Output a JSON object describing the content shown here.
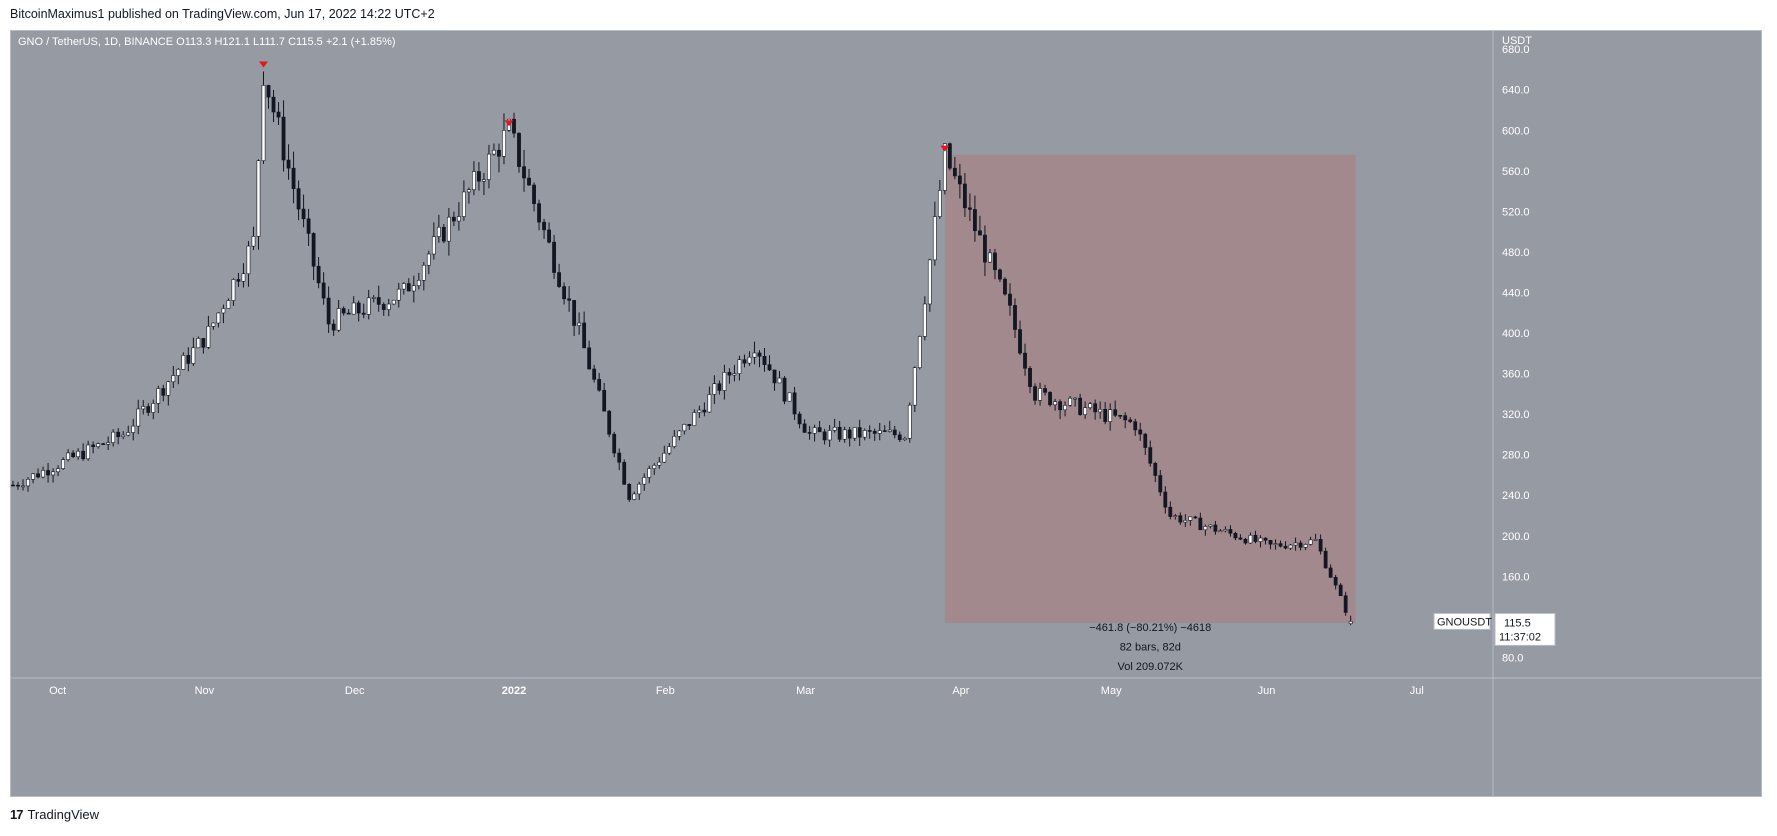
{
  "header": {
    "publisher_line": "BitcoinMaximus1 published on TradingView.com, Jun 17, 2022 14:22 UTC+2"
  },
  "legend": {
    "symbol": "GNO / TetherUS, 1D, BINANCE",
    "o_label": "O",
    "o_value": "113.3",
    "h_label": "H",
    "h_value": "121.1",
    "l_label": "L",
    "l_value": "111.7",
    "c_label": "C",
    "c_value": "115.5",
    "change": "+2.1 (+1.85%)"
  },
  "price_scale": {
    "currency": "USDT",
    "ticks": [
      "680.0",
      "640.0",
      "600.0",
      "560.0",
      "520.0",
      "480.0",
      "440.0",
      "400.0",
      "360.0",
      "320.0",
      "280.0",
      "240.0",
      "200.0",
      "160.0",
      "80.0"
    ]
  },
  "time_scale": {
    "labels": [
      "Oct",
      "Nov",
      "Dec",
      "2022",
      "Feb",
      "Mar",
      "Apr",
      "May",
      "Jun",
      "Jul"
    ]
  },
  "price_label": {
    "symbol": "GNOUSDT",
    "price": "115.5",
    "countdown": "11:37:02"
  },
  "measure": {
    "line1": "−461.8 (−80.21%) −4618",
    "line2": "82 bars, 82d",
    "line3": "Vol 209.072K"
  },
  "footer": {
    "logo_mark": "17",
    "brand": "TradingView"
  },
  "colors": {
    "chart_bg": "#969aa3",
    "candle_up": "#ffffff",
    "candle_down": "#131722",
    "marker": "#e8151b",
    "measure_fill": "#a3868b"
  },
  "chart_data": {
    "type": "candlestick",
    "title": "GNO / TetherUS, 1D, BINANCE",
    "ylabel": "USDT",
    "ylim": [
      60,
      698
    ],
    "x_range": [
      "2021-09-23",
      "2022-07-19"
    ],
    "key_points": [
      {
        "date": "2021-09-23",
        "price": 250
      },
      {
        "date": "2021-10-15",
        "price": 300
      },
      {
        "date": "2021-11-01",
        "price": 400
      },
      {
        "date": "2021-11-10",
        "price": 490
      },
      {
        "date": "2021-11-12",
        "price": 658,
        "marker": "local top"
      },
      {
        "date": "2021-11-25",
        "price": 410
      },
      {
        "date": "2021-12-10",
        "price": 440
      },
      {
        "date": "2021-12-31",
        "price": 600,
        "marker": "local top"
      },
      {
        "date": "2022-01-14",
        "price": 400
      },
      {
        "date": "2022-01-24",
        "price": 240
      },
      {
        "date": "2022-02-18",
        "price": 390
      },
      {
        "date": "2022-03-01",
        "price": 300
      },
      {
        "date": "2022-03-20",
        "price": 300
      },
      {
        "date": "2022-03-28",
        "price": 575,
        "marker": "local top"
      },
      {
        "date": "2022-04-10",
        "price": 420
      },
      {
        "date": "2022-04-15",
        "price": 340
      },
      {
        "date": "2022-05-05",
        "price": 310
      },
      {
        "date": "2022-05-12",
        "price": 220
      },
      {
        "date": "2022-06-01",
        "price": 190
      },
      {
        "date": "2022-06-10",
        "price": 195
      },
      {
        "date": "2022-06-17",
        "price": 115.5
      }
    ],
    "last_bar": {
      "open": 113.3,
      "high": 121.1,
      "low": 111.7,
      "close": 115.5
    },
    "measure_range": {
      "from_date": "2022-03-28",
      "to_date": "2022-06-18",
      "from_price": 575.8,
      "to_price": 114.0
    }
  }
}
